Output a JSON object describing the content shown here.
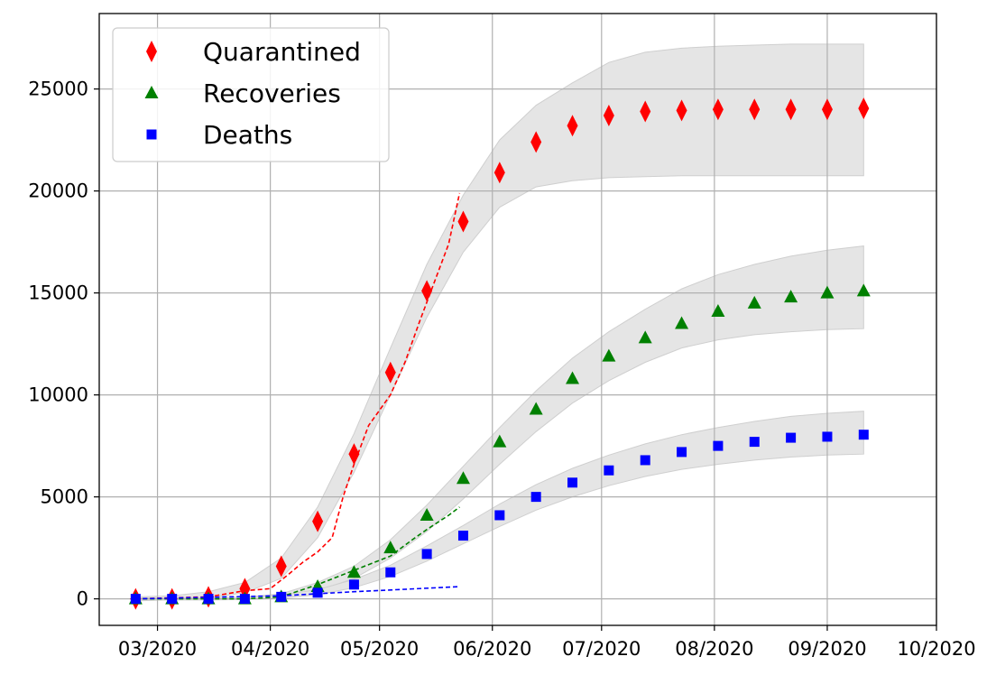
{
  "chart_data": {
    "type": "scatter",
    "title": "",
    "xlabel": "",
    "ylabel": "",
    "x_tick_labels": [
      "03/2020",
      "04/2020",
      "05/2020",
      "06/2020",
      "07/2020",
      "08/2020",
      "09/2020",
      "10/2020"
    ],
    "x_tick_dates": [
      "2020-03-01",
      "2020-04-01",
      "2020-05-01",
      "2020-06-01",
      "2020-07-01",
      "2020-08-01",
      "2020-09-01",
      "2020-10-01"
    ],
    "xlim": [
      "2020-02-14",
      "2020-10-01"
    ],
    "ylim": [
      -1300,
      28700
    ],
    "y_ticks": [
      0,
      5000,
      10000,
      15000,
      20000,
      25000
    ],
    "grid": true,
    "legend_position": "top-left",
    "x": [
      "2020-02-24",
      "2020-03-05",
      "2020-03-15",
      "2020-03-25",
      "2020-04-04",
      "2020-04-14",
      "2020-04-24",
      "2020-05-04",
      "2020-05-14",
      "2020-05-24",
      "2020-06-03",
      "2020-06-13",
      "2020-06-23",
      "2020-07-03",
      "2020-07-13",
      "2020-07-23",
      "2020-08-02",
      "2020-08-12",
      "2020-08-22",
      "2020-09-01",
      "2020-09-11"
    ],
    "series": [
      {
        "name": "Quarantined",
        "marker": "diamond",
        "color": "#ff0000",
        "values": [
          0,
          0,
          100,
          500,
          1600,
          3800,
          7100,
          11100,
          15100,
          18500,
          20900,
          22400,
          23200,
          23700,
          23900,
          23950,
          24000,
          24000,
          24000,
          24000,
          24050
        ],
        "band_upper": [
          100,
          150,
          350,
          800,
          2000,
          4500,
          8100,
          12300,
          16400,
          19800,
          22500,
          24200,
          25300,
          26300,
          26800,
          27000,
          27100,
          27150,
          27200,
          27200,
          27200
        ],
        "band_lower": [
          -100,
          -50,
          50,
          300,
          1000,
          3000,
          6200,
          10000,
          13800,
          17000,
          19200,
          20200,
          20500,
          20650,
          20700,
          20750,
          20750,
          20750,
          20750,
          20750,
          20750
        ]
      },
      {
        "name": "Recoveries",
        "marker": "triangle",
        "color": "#008000",
        "values": [
          0,
          0,
          0,
          0,
          100,
          600,
          1300,
          2500,
          4100,
          5900,
          7700,
          9300,
          10800,
          11900,
          12800,
          13500,
          14100,
          14500,
          14800,
          15000,
          15100
        ],
        "band_upper": [
          50,
          50,
          50,
          80,
          250,
          800,
          1600,
          2900,
          4600,
          6500,
          8400,
          10200,
          11800,
          13100,
          14200,
          15200,
          15900,
          16400,
          16800,
          17100,
          17300
        ],
        "band_lower": [
          -50,
          -50,
          -50,
          -30,
          50,
          400,
          1000,
          2000,
          3300,
          4900,
          6600,
          8200,
          9600,
          10700,
          11600,
          12300,
          12700,
          12950,
          13100,
          13200,
          13250
        ]
      },
      {
        "name": "Deaths",
        "marker": "square",
        "color": "#0000ff",
        "values": [
          0,
          0,
          0,
          0,
          100,
          300,
          700,
          1300,
          2200,
          3100,
          4100,
          5000,
          5700,
          6300,
          6800,
          7200,
          7500,
          7700,
          7900,
          7950,
          8050
        ],
        "band_upper": [
          50,
          50,
          50,
          80,
          200,
          450,
          950,
          1650,
          2600,
          3600,
          4650,
          5600,
          6400,
          7050,
          7600,
          8050,
          8400,
          8700,
          8950,
          9100,
          9200
        ],
        "band_lower": [
          -50,
          -50,
          -50,
          -30,
          30,
          200,
          550,
          1100,
          1850,
          2700,
          3550,
          4350,
          5000,
          5550,
          6000,
          6350,
          6600,
          6800,
          6950,
          7050,
          7100
        ]
      }
    ],
    "fit_lines": [
      {
        "series": "Quarantined",
        "color": "#ff0000",
        "x": [
          "2020-02-24",
          "2020-03-15",
          "2020-03-25",
          "2020-04-01",
          "2020-04-06",
          "2020-04-10",
          "2020-04-14",
          "2020-04-18",
          "2020-04-21",
          "2020-04-24",
          "2020-04-28",
          "2020-05-04",
          "2020-05-08",
          "2020-05-12",
          "2020-05-16",
          "2020-05-20",
          "2020-05-23"
        ],
        "values": [
          0,
          100,
          400,
          500,
          1200,
          1800,
          2300,
          3000,
          5000,
          6600,
          8500,
          10000,
          11600,
          13600,
          15500,
          17400,
          19900
        ]
      },
      {
        "series": "Recoveries",
        "color": "#008000",
        "x": [
          "2020-02-24",
          "2020-03-25",
          "2020-04-04",
          "2020-04-14",
          "2020-04-24",
          "2020-05-04",
          "2020-05-10",
          "2020-05-14",
          "2020-05-20",
          "2020-05-23"
        ],
        "values": [
          0,
          0,
          100,
          700,
          1400,
          2100,
          2900,
          3400,
          4100,
          4500
        ]
      },
      {
        "series": "Deaths",
        "color": "#0000ff",
        "x": [
          "2020-02-24",
          "2020-04-04",
          "2020-04-24",
          "2020-05-23"
        ],
        "values": [
          0,
          150,
          350,
          600
        ]
      }
    ]
  }
}
